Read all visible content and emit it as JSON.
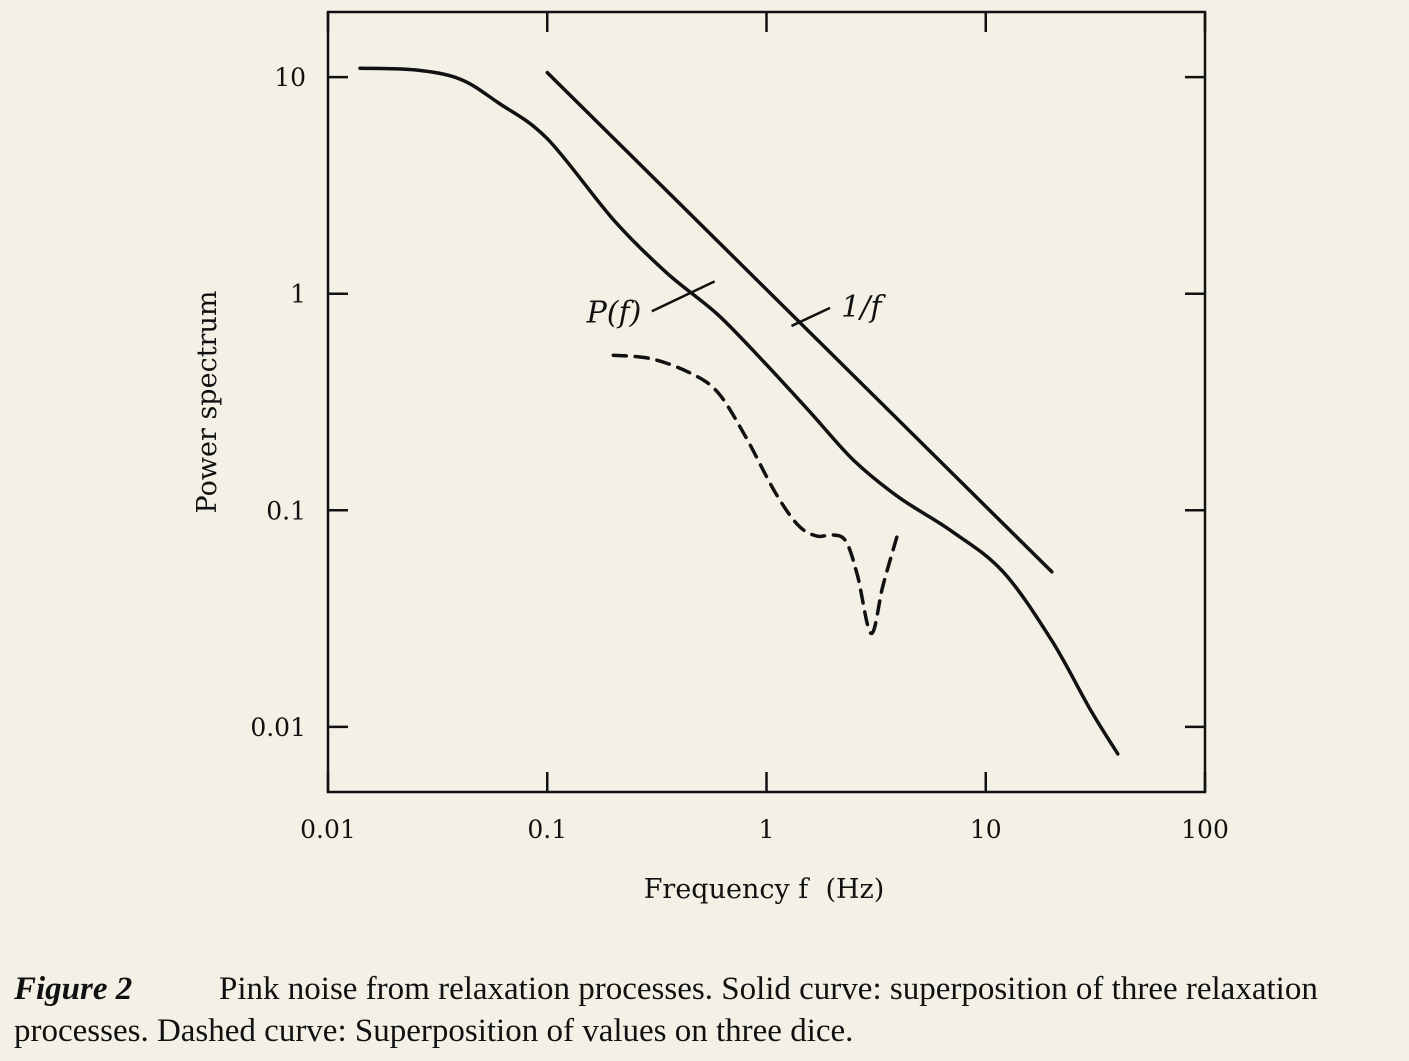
{
  "chart_data": {
    "type": "line",
    "xscale": "log",
    "yscale": "log",
    "xlabel": "Frequency f  (Hz)",
    "ylabel": "Power spectrum",
    "xlim": [
      0.01,
      100
    ],
    "ylim": [
      0.005,
      20
    ],
    "xticks": [
      "0.01",
      "0.1",
      "1",
      "10",
      "100"
    ],
    "yticks": [
      "10",
      "1",
      "0.1",
      "0.01"
    ],
    "xtick_values": [
      0.01,
      0.1,
      1,
      10,
      100
    ],
    "ytick_values": [
      10,
      1,
      0.1,
      0.01
    ],
    "series": [
      {
        "name": "P(f)",
        "style": "solid",
        "x": [
          0.014,
          0.025,
          0.04,
          0.06,
          0.1,
          0.2,
          0.35,
          0.6,
          1.0,
          1.6,
          2.5,
          4.0,
          7.0,
          12.0,
          20.0,
          30.0,
          40.0
        ],
        "y": [
          11,
          10.8,
          9.8,
          7.6,
          5.2,
          2.2,
          1.25,
          0.8,
          0.47,
          0.28,
          0.17,
          0.115,
          0.08,
          0.052,
          0.025,
          0.012,
          0.0075
        ]
      },
      {
        "name": "1/f",
        "style": "solid",
        "x": [
          0.1,
          20.0
        ],
        "y": [
          10.5,
          0.052
        ]
      },
      {
        "name": "dice",
        "style": "dashed",
        "x": [
          0.2,
          0.3,
          0.45,
          0.6,
          0.8,
          1.1,
          1.4,
          1.7,
          2.0,
          2.3,
          2.6,
          3.0,
          3.4,
          4.0
        ],
        "y": [
          0.52,
          0.5,
          0.43,
          0.35,
          0.22,
          0.12,
          0.085,
          0.076,
          0.077,
          0.072,
          0.05,
          0.027,
          0.045,
          0.08
        ]
      }
    ],
    "annotations": [
      {
        "text": "P(f)",
        "series": "P(f)"
      },
      {
        "text": "1/f",
        "series": "1/f"
      }
    ]
  },
  "caption": {
    "label": "Figure 2",
    "text": "Pink noise from relaxation processes. Solid curve: superposition of three relaxation processes. Dashed curve: Superposition of values on three dice."
  }
}
